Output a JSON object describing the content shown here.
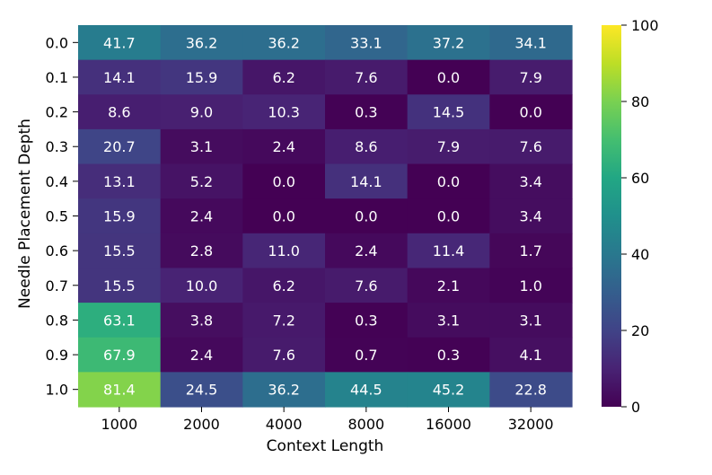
{
  "chart_data": {
    "type": "heatmap",
    "title": "",
    "xlabel": "Context Length",
    "ylabel": "Needle Placement Depth",
    "x_categories": [
      "1000",
      "2000",
      "4000",
      "8000",
      "16000",
      "32000"
    ],
    "y_categories": [
      "0.0",
      "0.1",
      "0.2",
      "0.3",
      "0.4",
      "0.5",
      "0.6",
      "0.7",
      "0.8",
      "0.9",
      "1.0"
    ],
    "values": [
      [
        41.7,
        36.2,
        36.2,
        33.1,
        37.2,
        34.1
      ],
      [
        14.1,
        15.9,
        6.2,
        7.6,
        0.0,
        7.9
      ],
      [
        8.6,
        9.0,
        10.3,
        0.3,
        14.5,
        0.0
      ],
      [
        20.7,
        3.1,
        2.4,
        8.6,
        7.9,
        7.6
      ],
      [
        13.1,
        5.2,
        0.0,
        14.1,
        0.0,
        3.4
      ],
      [
        15.9,
        2.4,
        0.0,
        0.0,
        0.0,
        3.4
      ],
      [
        15.5,
        2.8,
        11.0,
        2.4,
        11.4,
        1.7
      ],
      [
        15.5,
        10.0,
        6.2,
        7.6,
        2.1,
        1.0
      ],
      [
        63.1,
        3.8,
        7.2,
        0.3,
        3.1,
        3.1
      ],
      [
        67.9,
        2.4,
        7.6,
        0.7,
        0.3,
        4.1
      ],
      [
        81.4,
        24.5,
        36.2,
        44.5,
        45.2,
        22.8
      ]
    ],
    "colormap": "viridis",
    "vmin": 0,
    "vmax": 100,
    "colorbar_ticks": [
      "0",
      "20",
      "40",
      "60",
      "80",
      "100"
    ],
    "annotation_color": "#ffffff",
    "grid": false
  }
}
